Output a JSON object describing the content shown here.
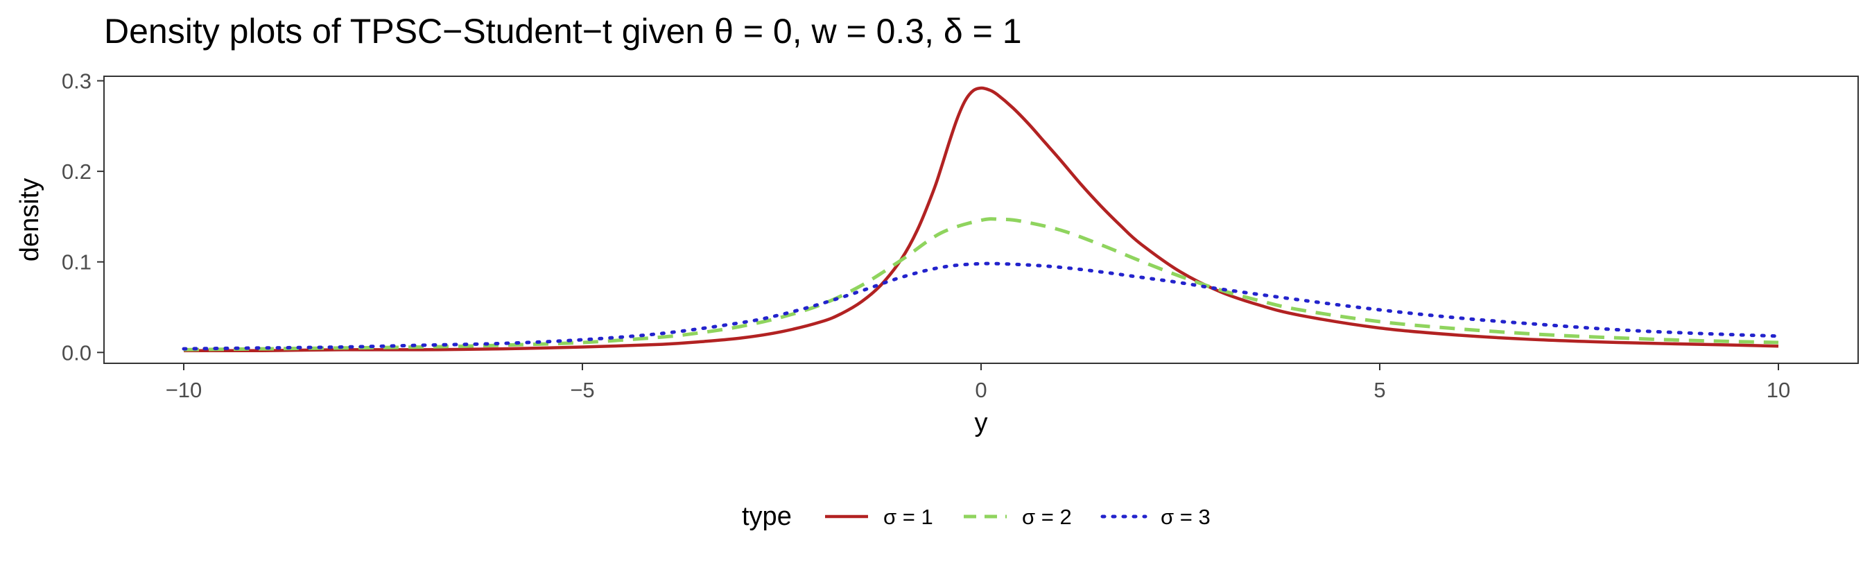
{
  "chart_data": {
    "type": "line",
    "title": "Density plots of TPSC−Student−t given θ = 0, w = 0.3, δ = 1",
    "xlabel": "y",
    "ylabel": "density",
    "xlim": [
      -11,
      11
    ],
    "ylim": [
      -0.012,
      0.305
    ],
    "xticks": [
      -10,
      -5,
      0,
      5,
      10
    ],
    "xtick_labels": [
      "−10",
      "−5",
      "0",
      "5",
      "10"
    ],
    "yticks": [
      0.0,
      0.1,
      0.2,
      0.3
    ],
    "ytick_labels": [
      "0.0",
      "0.1",
      "0.2",
      "0.3"
    ],
    "grid": false,
    "legend": {
      "title": "type",
      "placement": "bottom"
    },
    "series": [
      {
        "name": "σ = 1",
        "color": "#b22222",
        "dash": "solid",
        "x": [
          -10,
          -9,
          -8,
          -7,
          -6,
          -5,
          -4,
          -3.5,
          -3,
          -2.5,
          -2,
          -1.75,
          -1.5,
          -1.25,
          -1,
          -0.8,
          -0.6,
          -0.5,
          -0.4,
          -0.3,
          -0.2,
          -0.1,
          0,
          0.1,
          0.2,
          0.4,
          0.6,
          0.8,
          1,
          1.25,
          1.5,
          1.75,
          2,
          2.5,
          3,
          3.5,
          4,
          5,
          6,
          7,
          8,
          9,
          10
        ],
        "values": [
          0.002,
          0.002,
          0.003,
          0.003,
          0.004,
          0.006,
          0.009,
          0.012,
          0.016,
          0.023,
          0.034,
          0.043,
          0.056,
          0.075,
          0.103,
          0.135,
          0.178,
          0.204,
          0.232,
          0.258,
          0.278,
          0.289,
          0.292,
          0.29,
          0.285,
          0.27,
          0.252,
          0.232,
          0.212,
          0.186,
          0.162,
          0.14,
          0.12,
          0.089,
          0.067,
          0.052,
          0.041,
          0.027,
          0.019,
          0.014,
          0.011,
          0.009,
          0.007
        ]
      },
      {
        "name": "σ = 2",
        "color": "#8fd45e",
        "dash": "dashed",
        "x": [
          -10,
          -9,
          -8,
          -7,
          -6,
          -5,
          -4,
          -3.5,
          -3,
          -2.5,
          -2,
          -1.5,
          -1,
          -0.5,
          0,
          0.25,
          0.5,
          1,
          1.5,
          2,
          2.5,
          3,
          3.5,
          4,
          5,
          6,
          7,
          8,
          9,
          10
        ],
        "values": [
          0.003,
          0.004,
          0.005,
          0.006,
          0.008,
          0.011,
          0.017,
          0.022,
          0.029,
          0.039,
          0.053,
          0.074,
          0.102,
          0.132,
          0.146,
          0.147,
          0.145,
          0.135,
          0.119,
          0.101,
          0.084,
          0.069,
          0.057,
          0.047,
          0.034,
          0.026,
          0.02,
          0.016,
          0.013,
          0.011
        ]
      },
      {
        "name": "σ = 3",
        "color": "#2323cc",
        "dash": "dotted",
        "x": [
          -10,
          -9,
          -8,
          -7,
          -6,
          -5,
          -4,
          -3,
          -2.5,
          -2,
          -1.5,
          -1,
          -0.5,
          0,
          0.5,
          1,
          1.5,
          2,
          2.5,
          3,
          4,
          5,
          6,
          7,
          8,
          9,
          10
        ],
        "values": [
          0.004,
          0.005,
          0.006,
          0.008,
          0.01,
          0.014,
          0.021,
          0.033,
          0.042,
          0.054,
          0.068,
          0.083,
          0.094,
          0.098,
          0.097,
          0.094,
          0.089,
          0.083,
          0.077,
          0.07,
          0.058,
          0.047,
          0.038,
          0.031,
          0.025,
          0.021,
          0.018
        ]
      }
    ]
  }
}
